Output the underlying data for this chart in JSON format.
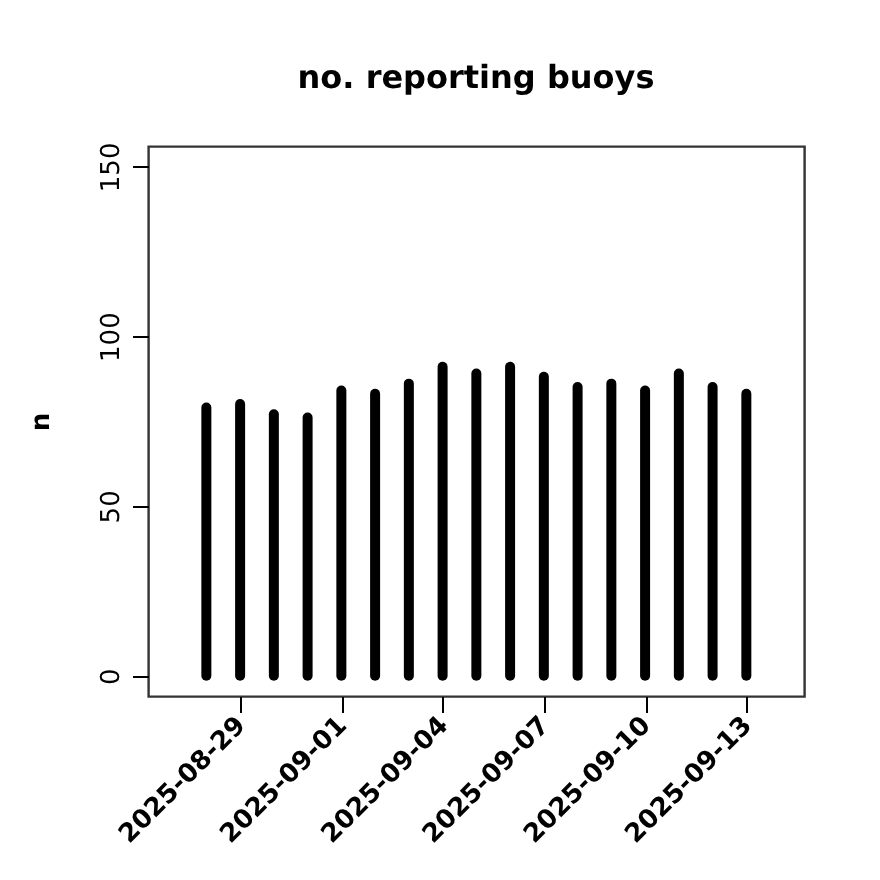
{
  "chart_data": {
    "type": "bar",
    "title": "no. reporting buoys",
    "ylabel": "n",
    "x": [
      "2025-08-28",
      "2025-08-29",
      "2025-08-30",
      "2025-08-31",
      "2025-09-01",
      "2025-09-02",
      "2025-09-03",
      "2025-09-04",
      "2025-09-05",
      "2025-09-06",
      "2025-09-07",
      "2025-09-08",
      "2025-09-09",
      "2025-09-10",
      "2025-09-11",
      "2025-09-12",
      "2025-09-13"
    ],
    "values": [
      79,
      80,
      77,
      76,
      84,
      83,
      86,
      91,
      89,
      91,
      88,
      85,
      86,
      84,
      89,
      85,
      83
    ],
    "color": "#000000",
    "xlim": [
      "2025-08-26T06:30",
      "2025-09-14T17:00"
    ],
    "xticks": [
      {
        "value": "2025-08-29",
        "label": "2025-08-29"
      },
      {
        "value": "2025-09-01",
        "label": "2025-09-01"
      },
      {
        "value": "2025-09-04",
        "label": "2025-09-04"
      },
      {
        "value": "2025-09-07",
        "label": "2025-09-07"
      },
      {
        "value": "2025-09-10",
        "label": "2025-09-10"
      },
      {
        "value": "2025-09-13",
        "label": "2025-09-13"
      }
    ],
    "ylim": [
      -6,
      156
    ],
    "yticks": [
      0,
      50,
      100,
      150
    ],
    "grid": false
  }
}
